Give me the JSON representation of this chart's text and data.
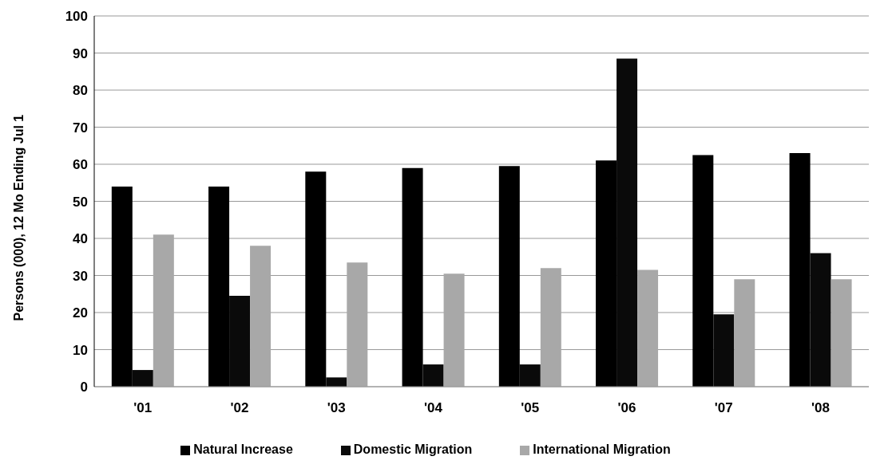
{
  "chart_data": {
    "type": "bar",
    "ylabel": "Persons (000), 12 Mo Ending Jul 1",
    "categories": [
      "'01",
      "'02",
      "'03",
      "'04",
      "'05",
      "'06",
      "'07",
      "'08"
    ],
    "series": [
      {
        "name": "Natural Increase",
        "color": "#000000",
        "values": [
          54,
          54,
          58,
          59,
          59.5,
          61,
          62.5,
          63
        ]
      },
      {
        "name": "Domestic Migration",
        "color": "#0a0a0a",
        "values": [
          4.5,
          24.5,
          2.5,
          6,
          6,
          88.5,
          19.5,
          36
        ]
      },
      {
        "name": "International Migration",
        "color": "#a8a8a8",
        "values": [
          41,
          38,
          33.5,
          30.5,
          32,
          31.5,
          29,
          29
        ]
      }
    ],
    "ylim": [
      0,
      100
    ],
    "yticks": [
      0,
      10,
      20,
      30,
      40,
      50,
      60,
      70,
      80,
      90,
      100
    ],
    "grid": "y",
    "legend": "bottom"
  }
}
